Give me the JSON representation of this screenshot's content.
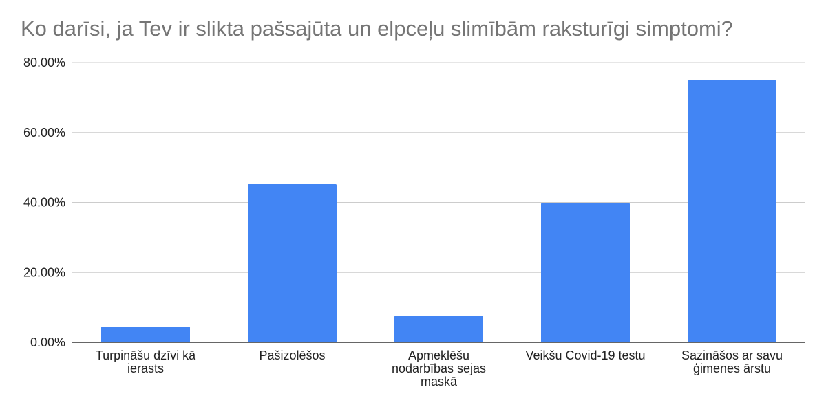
{
  "chart_data": {
    "type": "bar",
    "title": "Ko darīsi, ja Tev ir slikta pašsajūta un elpceļu slimībām raksturīgi simptomi?",
    "xlabel": "",
    "ylabel": "",
    "categories": [
      [
        "Turpināšu dzīvi kā",
        "ierasts"
      ],
      [
        "Pašizolēšos"
      ],
      [
        "Apmeklēšu",
        "nodarbības sejas",
        "maskā"
      ],
      [
        "Veikšu Covid-19 testu"
      ],
      [
        "Sazināšos ar savu",
        "ģimenes ārstu"
      ]
    ],
    "values": [
      4.5,
      45.2,
      7.6,
      39.8,
      74.9
    ],
    "ylim": [
      0,
      80
    ],
    "yticks": [
      "0.00%",
      "20.00%",
      "40.00%",
      "60.00%",
      "80.00%"
    ],
    "grid": true,
    "legend": "none",
    "colors": {
      "bar": "#4285f4",
      "grid": "#cccccc",
      "axis": "#333333"
    }
  }
}
